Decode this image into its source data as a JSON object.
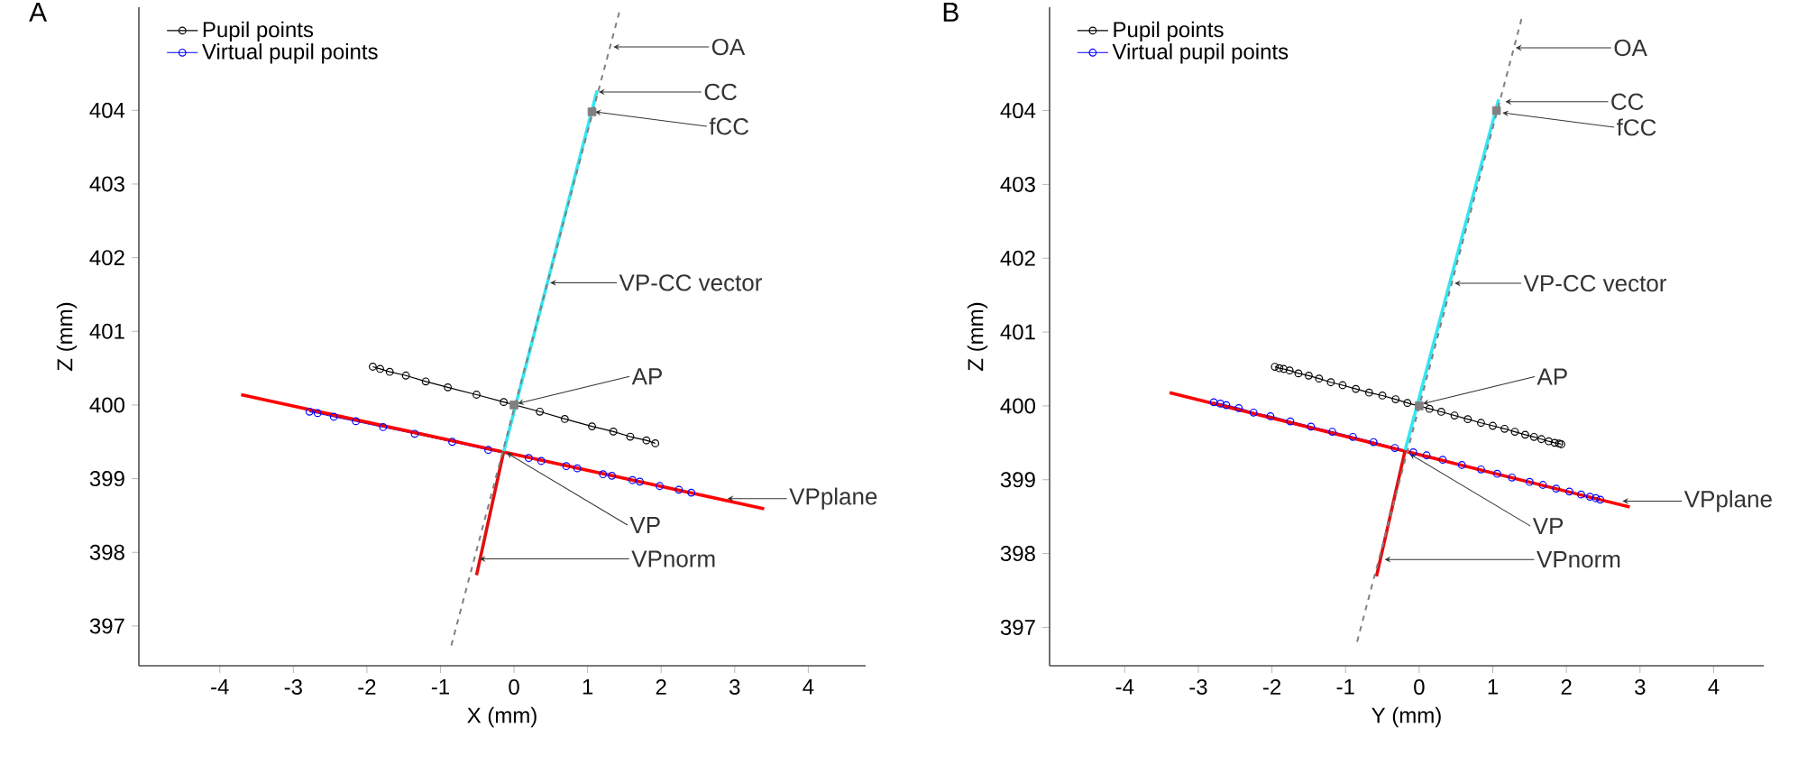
{
  "chart_data": [
    {
      "type": "scatter",
      "title": "A",
      "xlabel": "X (mm)",
      "ylabel": "Z (mm)",
      "xlim": [
        -5.1,
        4.78
      ],
      "ylim": [
        396.46,
        405.4
      ],
      "xticks": [
        -4,
        -3,
        -2,
        -1,
        0,
        1,
        2,
        3,
        4
      ],
      "yticks": [
        397,
        398,
        399,
        400,
        401,
        402,
        403,
        404
      ],
      "legend": "top left",
      "series": [
        {
          "name": "Pupil points",
          "type": "line",
          "marker": "circle",
          "color": "#000000",
          "x": [
            -1.92,
            -1.82,
            -1.69,
            -1.47,
            -1.2,
            -0.9,
            -0.51,
            -0.14,
            0.35,
            0.69,
            1.06,
            1.35,
            1.58,
            1.8,
            1.92
          ],
          "values": [
            400.52,
            400.49,
            400.45,
            400.4,
            400.32,
            400.24,
            400.14,
            400.04,
            399.91,
            399.81,
            399.71,
            399.64,
            399.57,
            399.52,
            399.48
          ]
        },
        {
          "name": "Virtual pupil points",
          "type": "line",
          "marker": "circle",
          "color": "#0000ff",
          "x": [
            -2.78,
            -2.67,
            -2.45,
            -2.15,
            -1.78,
            -1.35,
            -0.84,
            -0.35,
            0.2,
            0.37,
            0.71,
            0.86,
            1.21,
            1.33,
            1.61,
            1.71,
            1.98,
            2.24,
            2.41
          ],
          "values": [
            399.91,
            399.89,
            399.84,
            399.78,
            399.7,
            399.61,
            399.5,
            399.39,
            399.28,
            399.24,
            399.17,
            399.14,
            399.06,
            399.04,
            398.98,
            398.96,
            398.9,
            398.85,
            398.81
          ]
        },
        {
          "type": "line",
          "marker": "none",
          "color": "#ff0000",
          "x": [
            -3.71,
            3.4
          ],
          "values": [
            400.14,
            398.59
          ]
        },
        {
          "type": "line",
          "marker": "none",
          "color": "#33e6f2",
          "x": [
            -0.14,
            1.13
          ],
          "values": [
            399.37,
            404.27
          ]
        },
        {
          "type": "line",
          "marker": "none",
          "color": "#e01010",
          "x": [
            -0.14,
            -0.51
          ],
          "values": [
            399.37,
            397.69
          ]
        },
        {
          "type": "line",
          "marker": "none",
          "line_style": "dashed",
          "color": "#808080",
          "x": [
            1.43,
            -0.87
          ],
          "values": [
            405.33,
            396.67
          ]
        },
        {
          "type": "scatter",
          "marker": "square",
          "color": "#808080",
          "x": [
            1.06,
            0.0
          ],
          "values": [
            403.98,
            400.0
          ]
        }
      ],
      "annotations": [
        {
          "text": "OA",
          "x": 1.35,
          "y": 404.86
        },
        {
          "text": "CC",
          "x": 1.15,
          "y": 404.25
        },
        {
          "text": "fCC",
          "x": 1.1,
          "y": 403.98
        },
        {
          "text": "VP-CC vector",
          "x": 0.49,
          "y": 401.66
        },
        {
          "text": "AP",
          "x": 0.05,
          "y": 400.02
        },
        {
          "text": "VP",
          "x": -0.1,
          "y": 399.35
        },
        {
          "text": "VPnorm",
          "x": -0.47,
          "y": 397.91
        },
        {
          "text": "VPplane",
          "x": 2.9,
          "y": 398.73
        }
      ]
    },
    {
      "type": "scatter",
      "title": "B",
      "xlabel": "Y (mm)",
      "ylabel": "Z (mm)",
      "xlim": [
        -5.02,
        4.68
      ],
      "ylim": [
        396.48,
        405.4
      ],
      "xticks": [
        -4,
        -3,
        -2,
        -1,
        0,
        1,
        2,
        3,
        4
      ],
      "yticks": [
        397,
        398,
        399,
        400,
        401,
        402,
        403,
        404
      ],
      "legend": "top left",
      "series": [
        {
          "name": "Pupil points",
          "type": "line",
          "marker": "circle",
          "color": "#000000",
          "x": [
            -1.96,
            -1.9,
            -1.84,
            -1.76,
            -1.64,
            -1.5,
            -1.36,
            -1.2,
            -1.04,
            -0.86,
            -0.68,
            -0.5,
            -0.32,
            -0.16,
            0.0,
            0.14,
            0.3,
            0.48,
            0.66,
            0.84,
            1.0,
            1.16,
            1.3,
            1.44,
            1.56,
            1.66,
            1.76,
            1.84,
            1.9,
            1.93
          ],
          "values": [
            400.53,
            400.51,
            400.5,
            400.48,
            400.44,
            400.41,
            400.37,
            400.32,
            400.28,
            400.23,
            400.18,
            400.14,
            400.09,
            400.04,
            null,
            399.96,
            399.92,
            399.87,
            399.82,
            399.77,
            399.73,
            399.69,
            399.65,
            399.61,
            399.58,
            399.55,
            399.52,
            399.5,
            399.49,
            399.48
          ]
        },
        {
          "name": "Virtual pupil points",
          "type": "line",
          "marker": "circle",
          "color": "#0000ff",
          "x": [
            -2.79,
            -2.7,
            -2.62,
            -2.45,
            -2.25,
            -2.02,
            -1.75,
            -1.47,
            -1.18,
            -0.9,
            -0.62,
            -0.33,
            -0.08,
            0.1,
            0.32,
            0.58,
            0.84,
            1.06,
            1.26,
            1.5,
            1.68,
            1.86,
            2.04,
            2.2,
            2.32,
            2.4,
            2.46
          ],
          "values": [
            400.05,
            400.03,
            400.01,
            399.97,
            399.91,
            399.86,
            399.79,
            399.72,
            399.65,
            399.58,
            399.51,
            399.43,
            399.37,
            399.33,
            399.27,
            399.2,
            399.14,
            399.08,
            399.03,
            398.97,
            398.93,
            398.88,
            398.84,
            398.8,
            398.77,
            398.75,
            398.73
          ]
        },
        {
          "type": "line",
          "marker": "none",
          "color": "#ff0000",
          "x": [
            -3.39,
            2.86
          ],
          "values": [
            400.18,
            398.63
          ]
        },
        {
          "type": "line",
          "marker": "none",
          "color": "#33e6f2",
          "x": [
            -0.19,
            1.08
          ],
          "values": [
            399.4,
            404.15
          ]
        },
        {
          "type": "line",
          "marker": "none",
          "color": "#e01010",
          "x": [
            -0.19,
            -0.58
          ],
          "values": [
            399.4,
            397.69
          ]
        },
        {
          "type": "line",
          "marker": "none",
          "line_style": "dashed",
          "color": "#808080",
          "x": [
            1.39,
            -0.86
          ],
          "values": [
            405.24,
            396.74
          ]
        },
        {
          "type": "scatter",
          "marker": "square",
          "color": "#808080",
          "x": [
            1.05,
            0.0
          ],
          "values": [
            404.0,
            400.0
          ]
        }
      ],
      "annotations": [
        {
          "text": "OA",
          "x": 1.31,
          "y": 404.85
        },
        {
          "text": "CC",
          "x": 1.17,
          "y": 404.12
        },
        {
          "text": "fCC",
          "x": 1.13,
          "y": 403.97
        },
        {
          "text": "VP-CC vector",
          "x": 0.48,
          "y": 401.66
        },
        {
          "text": "AP",
          "x": 0.05,
          "y": 400.03
        },
        {
          "text": "VP",
          "x": -0.13,
          "y": 399.35
        },
        {
          "text": "VPnorm",
          "x": -0.47,
          "y": 397.92
        },
        {
          "text": "VPplane",
          "x": 2.76,
          "y": 398.71
        }
      ]
    }
  ]
}
